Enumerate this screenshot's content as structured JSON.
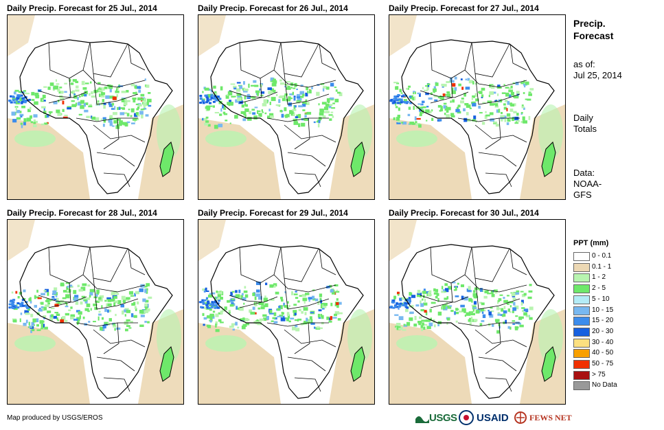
{
  "panels": [
    {
      "title": "Daily Precip. Forecast for 25 Jul., 2014"
    },
    {
      "title": "Daily Precip. Forecast for 26 Jul., 2014"
    },
    {
      "title": "Daily Precip. Forecast for 27 Jul., 2014"
    },
    {
      "title": "Daily Precip. Forecast for 28 Jul., 2014"
    },
    {
      "title": "Daily Precip. Forecast for 29 Jul., 2014"
    },
    {
      "title": "Daily Precip. Forecast for 30 Jul., 2014"
    }
  ],
  "sidebar": {
    "title_line1": "Precip.",
    "title_line2": "Forecast",
    "asof_label": "as of:",
    "asof_date": "Jul 25, 2014",
    "totals_line1": "Daily",
    "totals_line2": "Totals",
    "data_line1": "Data:",
    "data_line2": "NOAA-",
    "data_line3": "GFS"
  },
  "legend": {
    "title": "PPT (mm)",
    "items": [
      {
        "label": "0 - 0.1",
        "color": "#ffffff"
      },
      {
        "label": "0.1 - 1",
        "color": "#ecd8b4"
      },
      {
        "label": "1 - 2",
        "color": "#b8f4b0"
      },
      {
        "label": "2 - 5",
        "color": "#6ee86a"
      },
      {
        "label": "5 - 10",
        "color": "#b4ecf6"
      },
      {
        "label": "10 - 15",
        "color": "#78b8f0"
      },
      {
        "label": "15 - 20",
        "color": "#3c8cec"
      },
      {
        "label": "20 - 30",
        "color": "#1660e0"
      },
      {
        "label": "30 - 40",
        "color": "#fce080"
      },
      {
        "label": "40 - 50",
        "color": "#f8a000"
      },
      {
        "label": "50 - 75",
        "color": "#f03000"
      },
      {
        "label": "> 75",
        "color": "#a81010"
      },
      {
        "label": "No Data",
        "color": "#999999"
      }
    ]
  },
  "credit": "Map produced by USGS/EROS",
  "logos": {
    "usgs": "USGS",
    "usaid": "USAID",
    "fews": "FEWS NET"
  }
}
